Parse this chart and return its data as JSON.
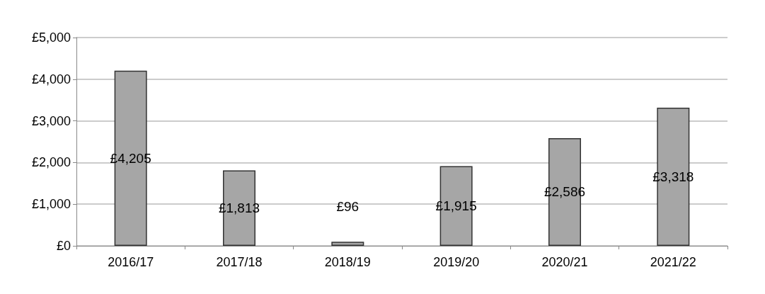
{
  "chart_data": {
    "type": "bar",
    "categories": [
      "2016/17",
      "2017/18",
      "2018/19",
      "2019/20",
      "2020/21",
      "2021/22"
    ],
    "values": [
      4205,
      1813,
      96,
      1915,
      2586,
      3318
    ],
    "value_labels": [
      "£4,205",
      "£1,813",
      "£96",
      "£1,915",
      "£2,586",
      "£3,318"
    ],
    "color": "#a6a6a6",
    "ylim": [
      0,
      5000
    ],
    "yticks": [
      {
        "value": 0,
        "label": "£0"
      },
      {
        "value": 1000,
        "label": "£1,000"
      },
      {
        "value": 2000,
        "label": "£2,000"
      },
      {
        "value": 3000,
        "label": "£3,000"
      },
      {
        "value": 4000,
        "label": "£4,000"
      },
      {
        "value": 5000,
        "label": "£5,000"
      }
    ],
    "grid": "y"
  }
}
